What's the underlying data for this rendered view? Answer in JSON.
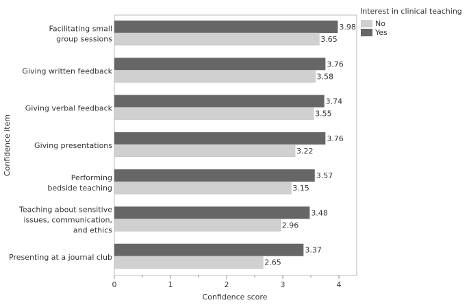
{
  "chart_data": {
    "type": "bar",
    "orientation": "horizontal",
    "xlabel": "Confidence score",
    "ylabel": "Confidence item",
    "xlim": [
      0,
      4.3
    ],
    "xticks": [
      "0",
      "1",
      "2",
      "3",
      "4"
    ],
    "grid": false,
    "legend": {
      "title": "Interest in clinical teaching",
      "placement": "top-right",
      "entries": [
        "No",
        "Yes"
      ]
    },
    "categories": [
      [
        "Facilitating small",
        "group sessions"
      ],
      [
        "Giving written feedback"
      ],
      [
        "Giving verbal feedback"
      ],
      [
        "Giving presentations"
      ],
      [
        "Performing",
        "bedside teaching"
      ],
      [
        "Teaching about sensitive",
        "issues, communication,",
        "and ethics"
      ],
      [
        "Presenting at a journal club"
      ]
    ],
    "series": [
      {
        "name": "Yes",
        "color": "#666666",
        "values": [
          3.98,
          3.76,
          3.74,
          3.76,
          3.57,
          3.48,
          3.37
        ],
        "labels": [
          "3.98",
          "3.76",
          "3.74",
          "3.76",
          "3.57",
          "3.48",
          "3.37"
        ]
      },
      {
        "name": "No",
        "color": "#d0d0d0",
        "values": [
          3.65,
          3.58,
          3.55,
          3.22,
          3.15,
          2.96,
          2.65
        ],
        "labels": [
          "3.65",
          "3.58",
          "3.55",
          "3.22",
          "3.15",
          "2.96",
          "2.65"
        ]
      }
    ]
  }
}
